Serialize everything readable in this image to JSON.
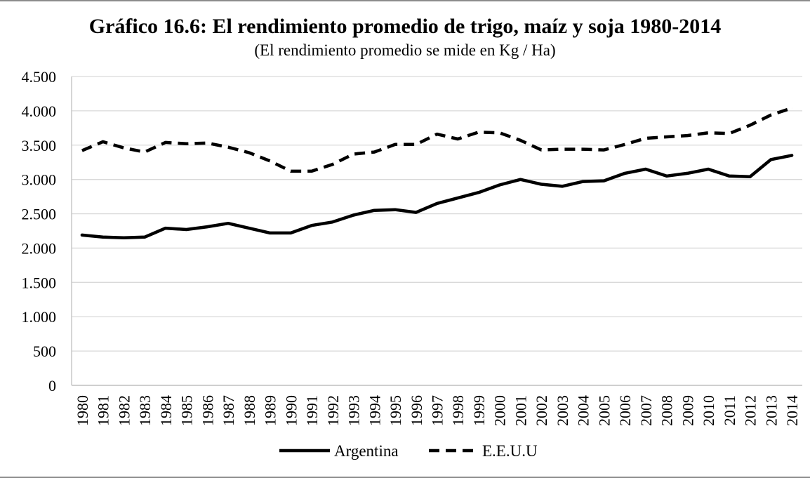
{
  "chart_data": {
    "type": "line",
    "title": "Gráfico 16.6: El rendimiento promedio de trigo, maíz y soja 1980-2014",
    "subtitle": "(El rendimiento promedio se mide en Kg / Ha)",
    "xlabel": "",
    "ylabel": "",
    "ylim": [
      0,
      4500
    ],
    "yticks": [
      0,
      500,
      1000,
      1500,
      2000,
      2500,
      3000,
      3500,
      4000,
      4500
    ],
    "ytick_labels": [
      "0",
      "500",
      "1.000",
      "1.500",
      "2.000",
      "2.500",
      "3.000",
      "3.500",
      "4.000",
      "4.500"
    ],
    "grid": true,
    "legend_position": "bottom",
    "categories": [
      "1980",
      "1981",
      "1982",
      "1983",
      "1984",
      "1985",
      "1986",
      "1987",
      "1988",
      "1989",
      "1990",
      "1991",
      "1992",
      "1993",
      "1994",
      "1995",
      "1996",
      "1997",
      "1998",
      "1999",
      "2000",
      "2001",
      "2002",
      "2003",
      "2004",
      "2005",
      "2006",
      "2007",
      "2008",
      "2009",
      "2010",
      "2011",
      "2012",
      "2013",
      "2014"
    ],
    "series": [
      {
        "name": "Argentina",
        "style": "solid",
        "color": "#000000",
        "values": [
          2190,
          2160,
          2150,
          2160,
          2290,
          2270,
          2310,
          2360,
          2290,
          2220,
          2220,
          2330,
          2380,
          2480,
          2550,
          2560,
          2520,
          2650,
          2730,
          2810,
          2920,
          3000,
          2930,
          2900,
          2970,
          2980,
          3090,
          3150,
          3050,
          3090,
          3150,
          3050,
          3040,
          3290,
          3350
        ]
      },
      {
        "name": "E.E.U.U",
        "style": "dashed",
        "color": "#000000",
        "values": [
          3420,
          3550,
          3460,
          3400,
          3540,
          3520,
          3530,
          3470,
          3390,
          3270,
          3120,
          3120,
          3220,
          3370,
          3400,
          3510,
          3510,
          3660,
          3590,
          3690,
          3680,
          3570,
          3430,
          3440,
          3440,
          3430,
          3510,
          3600,
          3620,
          3640,
          3680,
          3670,
          3790,
          3940,
          4040
        ]
      }
    ]
  }
}
